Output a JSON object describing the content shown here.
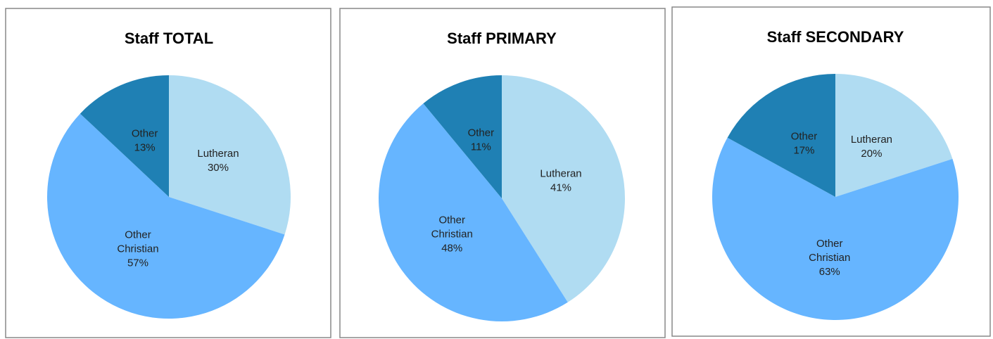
{
  "chart_data": [
    {
      "type": "pie",
      "title": "Staff TOTAL",
      "categories": [
        "Lutheran",
        "Other Christian",
        "Other"
      ],
      "values": [
        30,
        57,
        13
      ],
      "value_labels": [
        "30%",
        "57%",
        "13%"
      ],
      "colors": [
        "#b0dcf2",
        "#66b5ff",
        "#1f80b4"
      ]
    },
    {
      "type": "pie",
      "title": "Staff PRIMARY",
      "categories": [
        "Lutheran",
        "Other Christian",
        "Other"
      ],
      "values": [
        41,
        48,
        11
      ],
      "value_labels": [
        "41%",
        "48%",
        "11%"
      ],
      "colors": [
        "#b0dcf2",
        "#66b5ff",
        "#1f80b4"
      ]
    },
    {
      "type": "pie",
      "title": "Staff SECONDARY",
      "categories": [
        "Lutheran",
        "Other Christian",
        "Other"
      ],
      "values": [
        20,
        63,
        17
      ],
      "value_labels": [
        "20%",
        "63%",
        "17%"
      ],
      "colors": [
        "#b0dcf2",
        "#66b5ff",
        "#1f80b4"
      ]
    }
  ]
}
